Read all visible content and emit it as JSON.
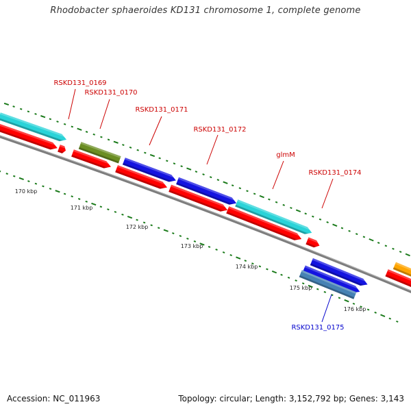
{
  "title": "Rhodobacter sphaeroides KD131 chromosome 1, complete genome",
  "footer": {
    "accession": "Accession: NC_011963",
    "summary": "Topology: circular; Length: 3,152,792 bp; Genes: 3,143"
  },
  "colors": {
    "backbone": "#7d7d7d",
    "cds": "#ff0000",
    "cyan": "#2ad3d8",
    "blue": "#1414e0",
    "olive": "#6b8e23",
    "steel": "#4682b4",
    "orange": "#ffa500",
    "tick": "#1a7a1a",
    "label_red": "#cc0000",
    "label_blue": "#0000cc",
    "scale_label": "#222222"
  },
  "scale_labels": [
    {
      "text": "170 kbp"
    },
    {
      "text": "171 kbp"
    },
    {
      "text": "172 kbp"
    },
    {
      "text": "173 kbp"
    },
    {
      "text": "174 kbp"
    },
    {
      "text": "175 kbp"
    },
    {
      "text": "176 kbp"
    }
  ],
  "gene_labels": [
    {
      "text": "RSKD131_0169",
      "color": "red"
    },
    {
      "text": "RSKD131_0170",
      "color": "red"
    },
    {
      "text": "RSKD131_0171",
      "color": "red"
    },
    {
      "text": "RSKD131_0172",
      "color": "red"
    },
    {
      "text": "glmM",
      "color": "red"
    },
    {
      "text": "RSKD131_0174",
      "color": "red"
    },
    {
      "text": "RSKD131_0175",
      "color": "blue"
    }
  ]
}
